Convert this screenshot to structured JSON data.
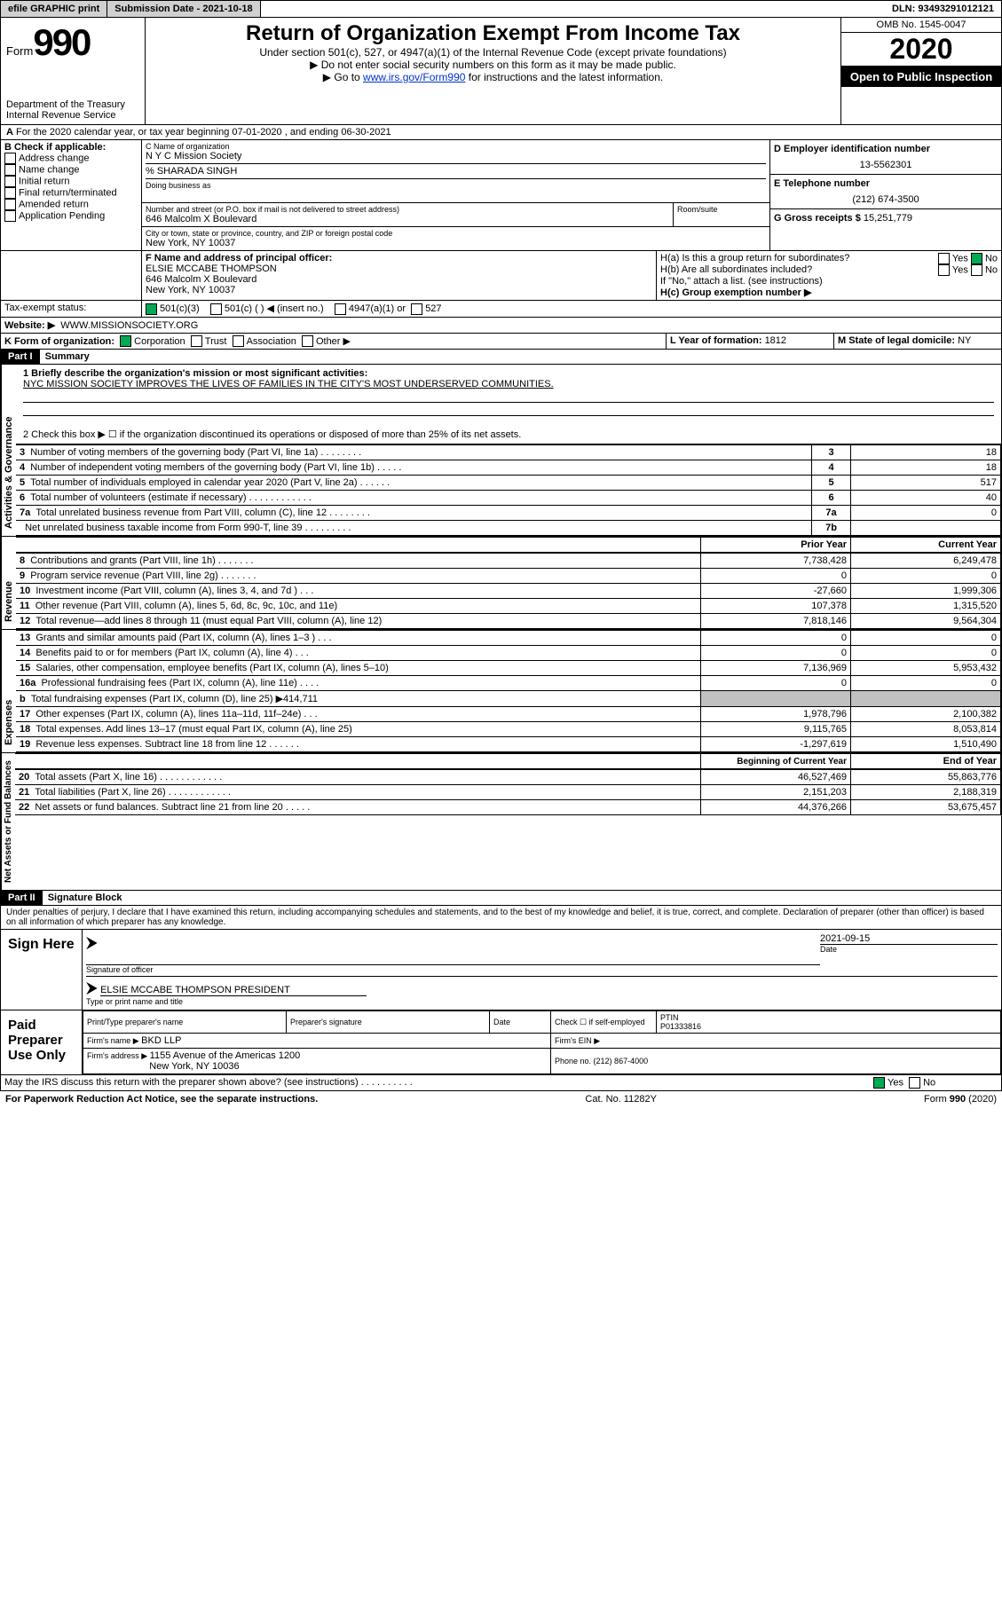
{
  "topbar": {
    "efile": "efile GRAPHIC print",
    "subdate_label": "Submission Date - ",
    "subdate": "2021-10-18",
    "dln": "DLN: 93493291012121"
  },
  "header": {
    "form_prefix": "Form",
    "form_num": "990",
    "dept1": "Department of the Treasury",
    "dept2": "Internal Revenue Service",
    "title": "Return of Organization Exempt From Income Tax",
    "sub1": "Under section 501(c), 527, or 4947(a)(1) of the Internal Revenue Code (except private foundations)",
    "sub2": "▶ Do not enter social security numbers on this form as it may be made public.",
    "sub3a": "▶ Go to ",
    "sub3link": "www.irs.gov/Form990",
    "sub3b": " for instructions and the latest information.",
    "omb": "OMB No. 1545-0047",
    "year": "2020",
    "open": "Open to Public Inspection"
  },
  "sectionA": {
    "a_line": "For the 2020 calendar year, or tax year beginning 07-01-2020   , and ending 06-30-2021",
    "b_label": "B Check if applicable:",
    "b_opts": [
      "Address change",
      "Name change",
      "Initial return",
      "Final return/terminated",
      "Amended return",
      "Application Pending"
    ],
    "c_label": "C Name of organization",
    "c_name": "N Y C Mission Society",
    "c_co": "% SHARADA SINGH",
    "c_dba": "Doing business as",
    "c_addr_label": "Number and street (or P.O. box if mail is not delivered to street address)",
    "c_addr": "646 Malcolm X Boulevard",
    "c_room": "Room/suite",
    "c_city_label": "City or town, state or province, country, and ZIP or foreign postal code",
    "c_city": "New York, NY  10037",
    "d_label": "D Employer identification number",
    "d_val": "13-5562301",
    "e_label": "E Telephone number",
    "e_val": "(212) 674-3500",
    "g_label": "G Gross receipts $ ",
    "g_val": "15,251,779",
    "f_label": "F Name and address of principal officer:",
    "f_name": "ELSIE MCCABE THOMPSON",
    "f_addr1": "646 Malcolm X Boulevard",
    "f_addr2": "New York, NY  10037",
    "ha_label": "H(a)  Is this a group return for subordinates?",
    "hb_label": "H(b)  Are all subordinates included?",
    "hb_note": "If \"No,\" attach a list. (see instructions)",
    "hc_label": "H(c)  Group exemption number ▶",
    "yes": "Yes",
    "no": "No",
    "i_label": "Tax-exempt status:",
    "i_501c3": "501(c)(3)",
    "i_501c": "501(c) (   ) ◀ (insert no.)",
    "i_4947": "4947(a)(1) or",
    "i_527": "527",
    "j_label": "Website: ▶",
    "j_val": "WWW.MISSIONSOCIETY.ORG",
    "k_label": "K Form of organization:",
    "k_corp": "Corporation",
    "k_trust": "Trust",
    "k_assoc": "Association",
    "k_other": "Other ▶",
    "l_label": "L Year of formation: ",
    "l_val": "1812",
    "m_label": "M State of legal domicile: ",
    "m_val": "NY"
  },
  "part1": {
    "hdr": "Part I",
    "title": "Summary",
    "q1_label": "1  Briefly describe the organization's mission or most significant activities:",
    "q1_val": "NYC MISSION SOCIETY IMPROVES THE LIVES OF FAMILIES IN THE CITY'S MOST UNDERSERVED COMMUNITIES.",
    "q2": "2   Check this box ▶ ☐  if the organization discontinued its operations or disposed of more than 25% of its net assets.",
    "vlabel1": "Activities & Governance",
    "vlabel2": "Revenue",
    "vlabel3": "Expenses",
    "vlabel4": "Net Assets or Fund Balances",
    "rows_gov": [
      {
        "n": "3",
        "t": "Number of voting members of the governing body (Part VI, line 1a)   .    .    .    .    .    .    .    .",
        "box": "3",
        "v": "18"
      },
      {
        "n": "4",
        "t": "Number of independent voting members of the governing body (Part VI, line 1b)   .    .    .    .    .",
        "box": "4",
        "v": "18"
      },
      {
        "n": "5",
        "t": "Total number of individuals employed in calendar year 2020 (Part V, line 2a)   .    .    .    .    .    .",
        "box": "5",
        "v": "517"
      },
      {
        "n": "6",
        "t": "Total number of volunteers (estimate if necessary)    .    .    .    .    .    .    .    .    .    .    .    .",
        "box": "6",
        "v": "40"
      },
      {
        "n": "7a",
        "t": "Total unrelated business revenue from Part VIII, column (C), line 12   .    .    .    .    .    .    .    .",
        "box": "7a",
        "v": "0"
      },
      {
        "n": "",
        "t": "Net unrelated business taxable income from Form 990-T, line 39    .    .    .    .    .    .    .    .    .",
        "box": "7b",
        "v": ""
      }
    ],
    "prior_hdr": "Prior Year",
    "curr_hdr": "Current Year",
    "rows_rev": [
      {
        "n": "8",
        "t": "Contributions and grants (Part VIII, line 1h)    .    .    .    .    .    .    .",
        "p": "7,738,428",
        "c": "6,249,478"
      },
      {
        "n": "9",
        "t": "Program service revenue (Part VIII, line 2g)    .    .    .    .    .    .    .",
        "p": "0",
        "c": "0"
      },
      {
        "n": "10",
        "t": "Investment income (Part VIII, column (A), lines 3, 4, and 7d )    .    .    .",
        "p": "-27,660",
        "c": "1,999,306"
      },
      {
        "n": "11",
        "t": "Other revenue (Part VIII, column (A), lines 5, 6d, 8c, 9c, 10c, and 11e)",
        "p": "107,378",
        "c": "1,315,520"
      },
      {
        "n": "12",
        "t": "Total revenue—add lines 8 through 11 (must equal Part VIII, column (A), line 12)",
        "p": "7,818,146",
        "c": "9,564,304"
      }
    ],
    "rows_exp": [
      {
        "n": "13",
        "t": "Grants and similar amounts paid (Part IX, column (A), lines 1–3 )   .    .    .",
        "p": "0",
        "c": "0"
      },
      {
        "n": "14",
        "t": "Benefits paid to or for members (Part IX, column (A), line 4)   .    .    .",
        "p": "0",
        "c": "0"
      },
      {
        "n": "15",
        "t": "Salaries, other compensation, employee benefits (Part IX, column (A), lines 5–10)",
        "p": "7,136,969",
        "c": "5,953,432"
      },
      {
        "n": "16a",
        "t": "Professional fundraising fees (Part IX, column (A), line 11e)    .    .    .    .",
        "p": "0",
        "c": "0"
      },
      {
        "n": "b",
        "t": "Total fundraising expenses (Part IX, column (D), line 25) ▶414,711",
        "p": "shade",
        "c": "shade"
      },
      {
        "n": "17",
        "t": "Other expenses (Part IX, column (A), lines 11a–11d, 11f–24e)   .    .    .",
        "p": "1,978,796",
        "c": "2,100,382"
      },
      {
        "n": "18",
        "t": "Total expenses. Add lines 13–17 (must equal Part IX, column (A), line 25)",
        "p": "9,115,765",
        "c": "8,053,814"
      },
      {
        "n": "19",
        "t": "Revenue less expenses. Subtract line 18 from line 12   .    .    .    .    .    .",
        "p": "-1,297,619",
        "c": "1,510,490"
      }
    ],
    "beg_hdr": "Beginning of Current Year",
    "end_hdr": "End of Year",
    "rows_net": [
      {
        "n": "20",
        "t": "Total assets (Part X, line 16)   .    .    .    .    .    .    .    .    .    .    .    .",
        "p": "46,527,469",
        "c": "55,863,776"
      },
      {
        "n": "21",
        "t": "Total liabilities (Part X, line 26)   .    .    .    .    .    .    .    .    .    .    .    .",
        "p": "2,151,203",
        "c": "2,188,319"
      },
      {
        "n": "22",
        "t": "Net assets or fund balances. Subtract line 21 from line 20   .    .    .    .    .",
        "p": "44,376,266",
        "c": "53,675,457"
      }
    ]
  },
  "part2": {
    "hdr": "Part II",
    "title": "Signature Block",
    "decl": "Under penalties of perjury, I declare that I have examined this return, including accompanying schedules and statements, and to the best of my knowledge and belief, it is true, correct, and complete. Declaration of preparer (other than officer) is based on all information of which preparer has any knowledge.",
    "sign_here": "Sign Here",
    "sig_officer": "Signature of officer",
    "sig_date": "2021-09-15",
    "date_label": "Date",
    "sig_name": "ELSIE MCCABE THOMPSON  PRESIDENT",
    "sig_type": "Type or print name and title",
    "paid": "Paid Preparer Use Only",
    "prep_name_label": "Print/Type preparer's name",
    "prep_sig_label": "Preparer's signature",
    "prep_date_label": "Date",
    "prep_check": "Check ☐ if self-employed",
    "ptin_label": "PTIN",
    "ptin": "P01333816",
    "firm_name_label": "Firm's name    ▶ ",
    "firm_name": "BKD LLP",
    "firm_ein_label": "Firm's EIN ▶",
    "firm_addr_label": "Firm's address ▶ ",
    "firm_addr1": "1155 Avenue of the Americas 1200",
    "firm_addr2": "New York, NY  10036",
    "phone_label": "Phone no. ",
    "phone": "(212) 867-4000",
    "discuss": "May the IRS discuss this return with the preparer shown above? (see instructions)    .    .    .    .    .    .    .    .    .    .",
    "discuss_yes": "Yes",
    "discuss_no": "No"
  },
  "footer": {
    "pra": "For Paperwork Reduction Act Notice, see the separate instructions.",
    "cat": "Cat. No. 11282Y",
    "form": "Form 990 (2020)"
  }
}
